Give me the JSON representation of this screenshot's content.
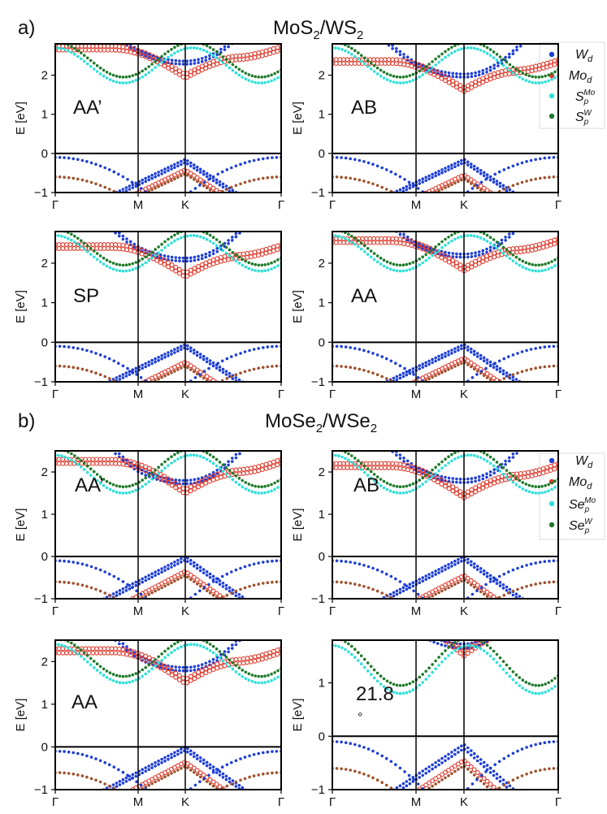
{
  "section_a": {
    "label": "a)",
    "title_main": "MoS",
    "title_sub1": "2",
    "title_mid": "/WS",
    "title_sub2": "2"
  },
  "section_b": {
    "label": "b)",
    "title_main": "MoSe",
    "title_sub1": "2",
    "title_mid": "/WSe",
    "title_sub2": "2"
  },
  "legend_a": [
    {
      "base": "W",
      "sub": "d",
      "sup": "",
      "color": "#1f3fd6"
    },
    {
      "base": "Mo",
      "sub": "d",
      "sup": "",
      "color": "#e03a2c"
    },
    {
      "base": "S",
      "sub": "p",
      "sup": "Mo",
      "color": "#2fe0d8"
    },
    {
      "base": "S",
      "sub": "p",
      "sup": "W",
      "color": "#1f7a2a"
    }
  ],
  "legend_b": [
    {
      "base": "W",
      "sub": "d",
      "sup": "",
      "color": "#1f3fd6"
    },
    {
      "base": "Mo",
      "sub": "d",
      "sup": "",
      "color": "#e03a2c"
    },
    {
      "base": "Se",
      "sub": "p",
      "sup": "Mo",
      "color": "#2fe0d8"
    },
    {
      "base": "Se",
      "sub": "p",
      "sup": "W",
      "color": "#1f7a2a"
    }
  ],
  "chart_data": [
    {
      "id": "a-AA-prime",
      "type": "scatter",
      "annotation": "AA’",
      "ylabel": "E [eV]",
      "ylim": [
        -1,
        2.8
      ],
      "yticks": [
        "2",
        "1",
        "0",
        "−1"
      ],
      "xticks": [
        "Γ",
        "M",
        "K",
        "Γ"
      ],
      "hline": 0,
      "conduction": [
        2.28,
        1.92
      ],
      "valence": [
        -0.15,
        -0.42
      ]
    },
    {
      "id": "a-AB",
      "type": "scatter",
      "annotation": "AB",
      "ylabel": "E [eV]",
      "ylim": [
        -1,
        2.8
      ],
      "yticks": [
        "2",
        "1",
        "0",
        "−1"
      ],
      "xticks": [
        "Γ",
        "M",
        "K",
        "Γ"
      ],
      "hline": 0,
      "conduction": [
        1.95,
        1.58
      ],
      "valence": [
        -0.15,
        -0.55
      ]
    },
    {
      "id": "a-SP",
      "type": "scatter",
      "annotation": "SP",
      "ylabel": "E [eV]",
      "ylim": [
        -1,
        2.8
      ],
      "yticks": [
        "2",
        "1",
        "0",
        "−1"
      ],
      "xticks": [
        "Γ",
        "M",
        "K",
        "Γ"
      ],
      "hline": 0,
      "conduction": [
        2.05,
        1.65
      ],
      "valence": [
        -0.05,
        -0.5
      ]
    },
    {
      "id": "a-AA",
      "type": "scatter",
      "annotation": "AA",
      "ylabel": "E [eV]",
      "ylim": [
        -1,
        2.8
      ],
      "yticks": [
        "2",
        "1",
        "0",
        "−1"
      ],
      "xticks": [
        "Γ",
        "M",
        "K",
        "Γ"
      ],
      "hline": 0,
      "conduction": [
        2.15,
        1.8
      ],
      "valence": [
        -0.05,
        -0.4
      ]
    },
    {
      "id": "b-AA-prime",
      "type": "scatter",
      "annotation": "AA’",
      "ylabel": "E [eV]",
      "ylim": [
        -1,
        2.5
      ],
      "yticks": [
        "2",
        "1",
        "0",
        "−1"
      ],
      "xticks": [
        "Γ",
        "M",
        "K",
        "Γ"
      ],
      "hline": 0,
      "conduction": [
        1.72,
        1.48
      ],
      "valence": [
        0.0,
        -0.35
      ]
    },
    {
      "id": "b-AB",
      "type": "scatter",
      "annotation": "AB",
      "ylabel": "E [eV]",
      "ylim": [
        -1,
        2.5
      ],
      "yticks": [
        "2",
        "1",
        "0",
        "−1"
      ],
      "xticks": [
        "Γ",
        "M",
        "K",
        "Γ"
      ],
      "hline": 0,
      "conduction": [
        1.75,
        1.38
      ],
      "valence": [
        0.0,
        -0.45
      ]
    },
    {
      "id": "b-AA",
      "type": "scatter",
      "annotation": "AA",
      "ylabel": "E [eV]",
      "ylim": [
        -1,
        2.5
      ],
      "yticks": [
        "2",
        "1",
        "0",
        "−1"
      ],
      "xticks": [
        "Γ",
        "M",
        "K",
        "Γ"
      ],
      "hline": 0,
      "conduction": [
        1.78,
        1.48
      ],
      "valence": [
        0.0,
        -0.35
      ]
    },
    {
      "id": "b-twist",
      "type": "scatter",
      "annotation": "21.8",
      "annotation_extra": "°",
      "ylabel": "E [eV]",
      "ylim": [
        -1,
        1.8
      ],
      "yticks": [
        "1",
        "0",
        "−1"
      ],
      "xticks": [
        "Γ",
        "M",
        "K",
        "Γ"
      ],
      "hline": 0,
      "conduction": [
        1.65,
        1.5
      ],
      "valence": [
        -0.15,
        -0.45
      ]
    }
  ]
}
